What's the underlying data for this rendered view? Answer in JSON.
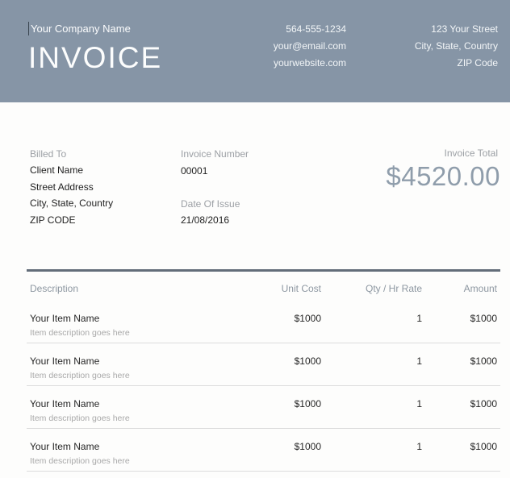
{
  "header": {
    "company_name": "Your Company Name",
    "title": "INVOICE",
    "phone": "564-555-1234",
    "email": "your@email.com",
    "website": "yourwebsite.com",
    "street": "123 Your Street",
    "city": "City, State, Country",
    "zip": "ZIP Code"
  },
  "billing": {
    "billed_to_label": "Billed To",
    "client_name": "Client Name",
    "street_address": "Street Address",
    "city": "City, State, Country",
    "zip": "ZIP CODE"
  },
  "invoice_meta": {
    "invoice_number_label": "Invoice Number",
    "invoice_number": "00001",
    "date_of_issue_label": "Date Of Issue",
    "date_of_issue": "21/08/2016",
    "invoice_total_label": "Invoice Total",
    "invoice_total": "$4520.00"
  },
  "table": {
    "columns": [
      "Description",
      "Unit Cost",
      "Qty / Hr Rate",
      "Amount"
    ],
    "rows": [
      {
        "name": "Your Item Name",
        "description": "Item description goes here",
        "unit_cost": "$1000",
        "qty": "1",
        "amount": "$1000"
      },
      {
        "name": "Your Item Name",
        "description": "Item description goes here",
        "unit_cost": "$1000",
        "qty": "1",
        "amount": "$1000"
      },
      {
        "name": "Your Item Name",
        "description": "Item description goes here",
        "unit_cost": "$1000",
        "qty": "1",
        "amount": "$1000"
      },
      {
        "name": "Your Item Name",
        "description": "Item description goes here",
        "unit_cost": "$1000",
        "qty": "1",
        "amount": "$1000"
      }
    ]
  },
  "colors": {
    "header_bg": "#8695a6",
    "header_text": "#fcfdfd",
    "label_gray": "#9b9fa4",
    "table_header_gray": "#8d97a1",
    "invoice_total": "#8f9dab",
    "divider_dark": "#636d79",
    "divider_light": "#dcdcdc",
    "body_text": "#262626",
    "muted_text": "#a9a9a9"
  }
}
